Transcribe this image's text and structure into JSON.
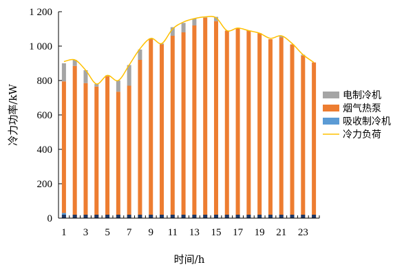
{
  "chart_data": {
    "type": "bar",
    "stacked": true,
    "xlabel": "时间/h",
    "ylabel": "冷力功率/kW",
    "ylim": [
      0,
      1200
    ],
    "yticks": [
      0,
      200,
      400,
      600,
      800,
      1000,
      1200
    ],
    "ytick_labels": [
      "0",
      "200",
      "400",
      "600",
      "800",
      "1 000",
      "1 200"
    ],
    "x": [
      1,
      2,
      3,
      4,
      5,
      6,
      7,
      8,
      9,
      10,
      11,
      12,
      13,
      14,
      15,
      16,
      17,
      18,
      19,
      20,
      21,
      22,
      23,
      24
    ],
    "xtick_labels": [
      "1",
      "3",
      "5",
      "7",
      "9",
      "11",
      "13",
      "15",
      "17",
      "19",
      "21",
      "23"
    ],
    "series": [
      {
        "name": "吸收制冷机",
        "kind": "bar",
        "color": "#5b9bd5",
        "values": [
          30,
          0,
          0,
          0,
          0,
          0,
          0,
          0,
          0,
          0,
          0,
          0,
          0,
          0,
          0,
          0,
          0,
          0,
          10,
          0,
          0,
          0,
          0,
          0
        ]
      },
      {
        "name": "烟气热泵",
        "kind": "bar",
        "color": "#ed7d31",
        "values": [
          765,
          885,
          785,
          765,
          825,
          735,
          770,
          920,
          1040,
          1010,
          1060,
          1080,
          1120,
          1165,
          1145,
          1090,
          1105,
          1090,
          1065,
          1040,
          1050,
          1010,
          945,
          905
        ]
      },
      {
        "name": "电制冷机",
        "kind": "bar",
        "color": "#a5a5a5",
        "values": [
          105,
          35,
          75,
          15,
          5,
          65,
          120,
          60,
          5,
          5,
          50,
          55,
          40,
          5,
          25,
          0,
          0,
          0,
          0,
          0,
          10,
          0,
          5,
          0
        ]
      },
      {
        "name": "冷力负荷",
        "kind": "line",
        "color": "#ffc000",
        "values": [
          910,
          920,
          860,
          780,
          830,
          800,
          890,
          985,
          1045,
          1015,
          1100,
          1140,
          1160,
          1170,
          1165,
          1090,
          1105,
          1090,
          1075,
          1045,
          1060,
          1015,
          950,
          905
        ]
      }
    ],
    "legend_position": "right",
    "grid": false
  }
}
